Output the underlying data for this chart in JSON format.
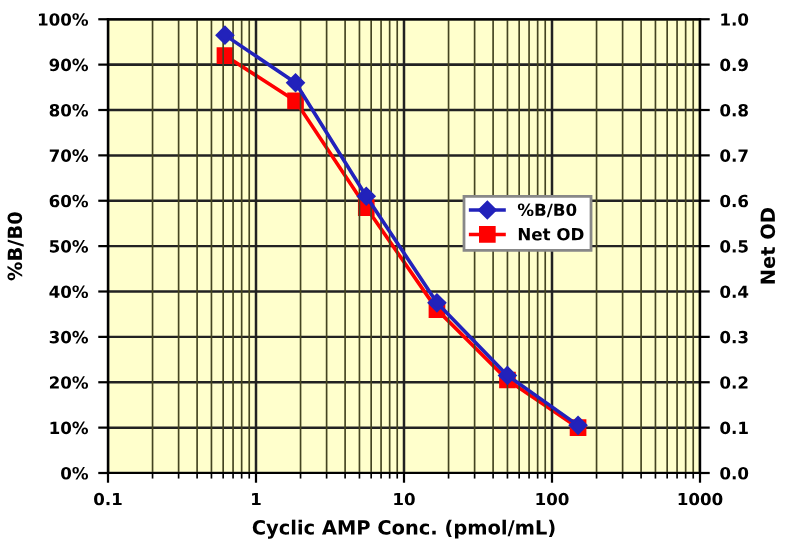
{
  "chart_data": {
    "type": "line",
    "xlabel": "Cyclic AMP Conc. (pmol/mL)",
    "ylabel": "%B/B0",
    "y2label": "Net OD",
    "x": [
      0.617,
      1.85,
      5.56,
      16.7,
      50,
      150
    ],
    "series": [
      {
        "name": "%B/B0",
        "color": "#2222bb",
        "marker": "diamond",
        "values": [
          96.5,
          86,
          61,
          37.5,
          21.5,
          10.5
        ]
      },
      {
        "name": "Net OD",
        "color": "#ff0000",
        "marker": "square",
        "axis": "y2",
        "values": [
          0.92,
          0.82,
          0.585,
          0.36,
          0.205,
          0.1
        ]
      }
    ],
    "log": "x",
    "xlim": [
      0.1,
      1000
    ],
    "xticks": [
      0.1,
      1,
      10,
      100,
      1000
    ],
    "ylim": [
      0,
      100
    ],
    "yticks": [
      {
        "value": 0,
        "label": "0%"
      },
      {
        "value": 10,
        "label": "10%"
      },
      {
        "value": 20,
        "label": "20%"
      },
      {
        "value": 30,
        "label": "30%"
      },
      {
        "value": 40,
        "label": "40%"
      },
      {
        "value": 50,
        "label": "50%"
      },
      {
        "value": 60,
        "label": "60%"
      },
      {
        "value": 70,
        "label": "70%"
      },
      {
        "value": 80,
        "label": "80%"
      },
      {
        "value": 90,
        "label": "90%"
      },
      {
        "value": 100,
        "label": "100%"
      }
    ],
    "y2lim": [
      0,
      1
    ],
    "y2ticks": [
      {
        "value": 0,
        "label": "0.0"
      },
      {
        "value": 0.1,
        "label": "0.1"
      },
      {
        "value": 0.2,
        "label": "0.2"
      },
      {
        "value": 0.3,
        "label": "0.3"
      },
      {
        "value": 0.4,
        "label": "0.4"
      },
      {
        "value": 0.5,
        "label": "0.5"
      },
      {
        "value": 0.6,
        "label": "0.6"
      },
      {
        "value": 0.7,
        "label": "0.7"
      },
      {
        "value": 0.8,
        "label": "0.8"
      },
      {
        "value": 0.9,
        "label": "0.9"
      },
      {
        "value": 1,
        "label": "1.0"
      }
    ],
    "grid": true,
    "legend": "right"
  }
}
